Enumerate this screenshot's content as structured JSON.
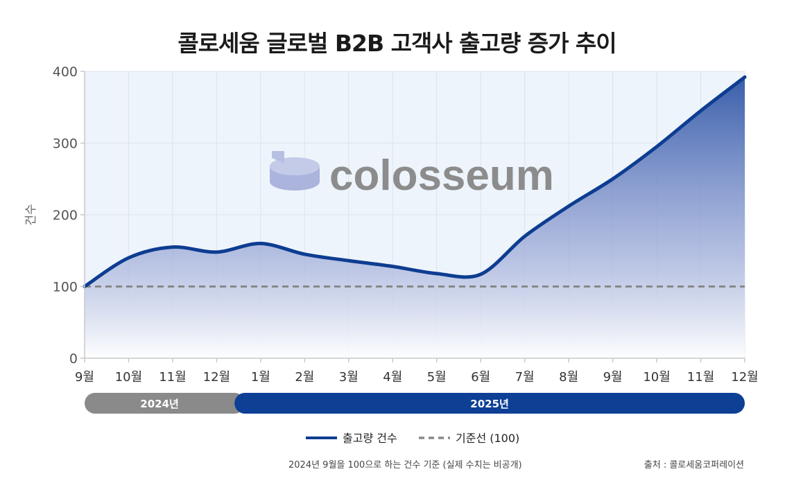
{
  "title": "콜로세움 글로벌 B2B 고객사 출고량 증가 추이",
  "watermark": {
    "text": "colosseum",
    "text_color": "#8c8c8c",
    "logo_color": "#aab4dc"
  },
  "colors": {
    "line": "#0d3d91",
    "area_top": "#2f56a6",
    "area_bottom": "#ffffff",
    "plot_bg": "#eef4fb",
    "baseline": "#888888",
    "year_2024": "#8a8a8a",
    "year_2025": "#0d3f95"
  },
  "chart_data": {
    "type": "area",
    "ylabel": "건수",
    "ylim": [
      0,
      400
    ],
    "yticks": [
      0,
      100,
      200,
      300,
      400
    ],
    "categories": [
      "9월",
      "10월",
      "11월",
      "12월",
      "1월",
      "2월",
      "3월",
      "4월",
      "5월",
      "6월",
      "7월",
      "8월",
      "9월",
      "10월",
      "11월",
      "12월"
    ],
    "series": [
      {
        "name": "출고량 건수",
        "values": [
          100,
          140,
          155,
          148,
          160,
          145,
          136,
          128,
          118,
          117,
          170,
          212,
          250,
          295,
          345,
          392
        ]
      },
      {
        "name": "기준선 (100)",
        "values": [
          100,
          100,
          100,
          100,
          100,
          100,
          100,
          100,
          100,
          100,
          100,
          100,
          100,
          100,
          100,
          100
        ]
      }
    ],
    "year_bands": [
      {
        "label": "2024년",
        "from": "9월",
        "to": "12월"
      },
      {
        "label": "2025년",
        "from": "1월",
        "to": "12월"
      }
    ],
    "grid": true,
    "legend_position": "bottom"
  },
  "footnote": "2024년 9월을 100으로 하는 건수 기준 (실제 수치는 비공개)",
  "source": "출처 : 콜로세움코퍼레이션"
}
